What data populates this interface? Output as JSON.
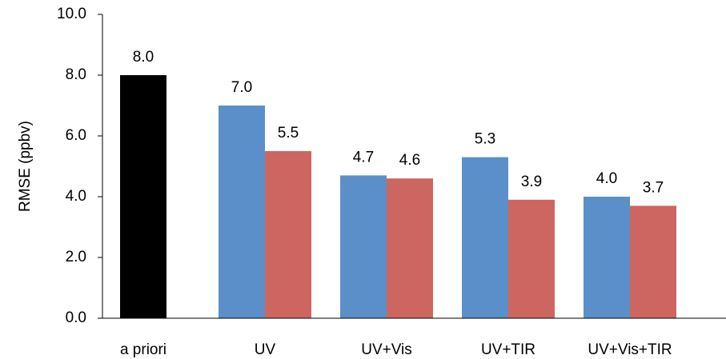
{
  "chart_data": {
    "type": "bar",
    "ylabel": "RMSE (ppbv)",
    "categories": [
      "a priori",
      "UV",
      "UV+Vis",
      "UV+TIR",
      "UV+Vis+TIR"
    ],
    "series": [
      {
        "color": "#000000",
        "values": [
          8.0,
          null,
          null,
          null,
          null
        ],
        "value_labels": [
          "8.0",
          null,
          null,
          null,
          null
        ]
      },
      {
        "color": "#5b8fc9",
        "values": [
          null,
          7.0,
          4.7,
          5.3,
          4.0
        ],
        "value_labels": [
          null,
          "7.0",
          "4.7",
          "5.3",
          "4.0"
        ]
      },
      {
        "color": "#cd6660",
        "values": [
          null,
          5.5,
          4.6,
          3.9,
          3.7
        ],
        "value_labels": [
          null,
          "5.5",
          "4.6",
          "3.9",
          "3.7"
        ]
      }
    ],
    "ylim": [
      0,
      10
    ],
    "yticks": [
      {
        "value": 0,
        "label": "0.0"
      },
      {
        "value": 2,
        "label": "2.0"
      },
      {
        "value": 4,
        "label": "4.0"
      },
      {
        "value": 6,
        "label": "6.0"
      },
      {
        "value": 8,
        "label": "8.0"
      },
      {
        "value": 10,
        "label": "10.0"
      }
    ],
    "grid": false
  }
}
